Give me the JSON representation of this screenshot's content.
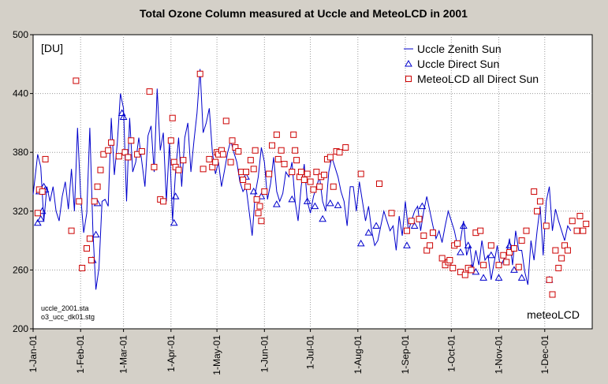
{
  "chart_data": {
    "type": "line",
    "title": "Total Ozone Column measured at Uccle and MeteoLCD in 2001",
    "unit_label": "[DU]",
    "xlabel": "",
    "ylabel": "",
    "ylim": [
      200,
      500
    ],
    "yticks": [
      200,
      260,
      320,
      380,
      440,
      500
    ],
    "xlim": [
      1,
      366
    ],
    "xticks": [
      {
        "label": "1-Jan-01",
        "day": 1
      },
      {
        "label": "1-Feb-01",
        "day": 32
      },
      {
        "label": "1-Mar-01",
        "day": 60
      },
      {
        "label": "1-Apr-01",
        "day": 91
      },
      {
        "label": "1-May-01",
        "day": 121
      },
      {
        "label": "1-Jun-01",
        "day": 152
      },
      {
        "label": "1-Jul-01",
        "day": 182
      },
      {
        "label": "1-Aug-01",
        "day": 213
      },
      {
        "label": "1-Sep-01",
        "day": 244
      },
      {
        "label": "1-Oct-01",
        "day": 274
      },
      {
        "label": "1-Nov-01",
        "day": 305
      },
      {
        "label": "1-Dec-01",
        "day": 335
      }
    ],
    "grid": true,
    "legend": "top-right",
    "series": [
      {
        "name": "Uccle Zenith Sun",
        "style": "line",
        "color": "#0000cc",
        "x": [
          1,
          4,
          6,
          8,
          10,
          12,
          14,
          16,
          18,
          20,
          22,
          24,
          26,
          28,
          30,
          32,
          34,
          36,
          38,
          40,
          42,
          44,
          46,
          48,
          50,
          52,
          54,
          56,
          58,
          60,
          62,
          64,
          66,
          68,
          70,
          72,
          74,
          76,
          78,
          80,
          82,
          84,
          86,
          88,
          90,
          92,
          94,
          96,
          98,
          100,
          102,
          104,
          106,
          108,
          110,
          112,
          114,
          116,
          118,
          120,
          122,
          124,
          126,
          128,
          130,
          132,
          134,
          136,
          138,
          140,
          142,
          144,
          146,
          148,
          150,
          152,
          154,
          156,
          158,
          160,
          162,
          164,
          166,
          168,
          170,
          172,
          174,
          176,
          178,
          180,
          182,
          184,
          186,
          188,
          190,
          192,
          194,
          196,
          198,
          200,
          202,
          204,
          206,
          208,
          210,
          212,
          214,
          216,
          218,
          220,
          222,
          224,
          226,
          228,
          230,
          232,
          234,
          236,
          238,
          240,
          242,
          244,
          246,
          248,
          250,
          252,
          254,
          256,
          258,
          260,
          262,
          264,
          266,
          268,
          270,
          272,
          274,
          276,
          278,
          280,
          282,
          284,
          286,
          288,
          290,
          292,
          294,
          296,
          298,
          300,
          302,
          304,
          306,
          308,
          310,
          312,
          314,
          316,
          318,
          320,
          322,
          324,
          326,
          328,
          330,
          332,
          334,
          336,
          338,
          340,
          342,
          344,
          346,
          348,
          350,
          352
        ],
        "y": [
          337,
          378,
          365,
          310,
          345,
          330,
          345,
          320,
          310,
          335,
          350,
          322,
          363,
          320,
          405,
          337,
          298,
          318,
          405,
          300,
          240,
          262,
          330,
          332,
          325,
          415,
          357,
          390,
          440,
          425,
          330,
          415,
          360,
          370,
          395,
          370,
          345,
          397,
          407,
          360,
          445,
          382,
          400,
          330,
          390,
          310,
          360,
          395,
          345,
          395,
          410,
          360,
          392,
          420,
          465,
          400,
          410,
          425,
          380,
          358,
          370,
          345,
          362,
          380,
          392,
          380,
          370,
          350,
          340,
          345,
          320,
          295,
          338,
          355,
          385,
          370,
          332,
          348,
          375,
          340,
          330,
          338,
          360,
          355,
          370,
          330,
          310,
          345,
          368,
          330,
          318,
          335,
          345,
          355,
          330,
          320,
          360,
          375,
          365,
          355,
          340,
          330,
          305,
          345,
          345,
          320,
          350,
          330,
          310,
          325,
          300,
          285,
          290,
          305,
          320,
          310,
          300,
          305,
          280,
          315,
          295,
          330,
          300,
          310,
          320,
          325,
          300,
          320,
          335,
          320,
          305,
          292,
          300,
          288,
          305,
          320,
          310,
          300,
          285,
          290,
          310,
          275,
          285,
          262,
          280,
          265,
          290,
          270,
          275,
          250,
          268,
          285,
          262,
          270,
          275,
          292,
          265,
          300,
          280,
          280,
          258,
          245,
          290,
          270,
          300,
          325,
          275,
          330,
          345,
          300,
          322,
          310,
          300,
          290,
          305,
          300
        ]
      },
      {
        "name": "Uccle Direct Sun",
        "style": "triangle",
        "color": "#0000cc",
        "x": [
          4,
          5,
          6,
          7,
          8,
          9,
          40,
          42,
          43,
          59,
          60,
          93,
          94,
          140,
          145,
          150,
          160,
          170,
          180,
          185,
          190,
          195,
          200,
          215,
          220,
          225,
          245,
          250,
          255,
          280,
          282,
          285,
          287,
          290,
          295,
          300,
          305,
          312,
          315,
          320,
          338
        ],
        "y": [
          308,
          340,
          312,
          320,
          345,
          342,
          270,
          296,
          328,
          420,
          416,
          308,
          335,
          355,
          340,
          335,
          327,
          332,
          330,
          325,
          312,
          328,
          326,
          287,
          298,
          305,
          285,
          305,
          325,
          278,
          305,
          285,
          262,
          258,
          252,
          275,
          252,
          285,
          260,
          252,
          250
        ]
      },
      {
        "name": "MeteoLCD all Direct Sun",
        "style": "square",
        "color": "#cc0000",
        "x": [
          4,
          5,
          7,
          9,
          26,
          29,
          31,
          33,
          36,
          38,
          39,
          41,
          43,
          45,
          47,
          50,
          52,
          57,
          61,
          63,
          65,
          69,
          72,
          77,
          80,
          84,
          86,
          91,
          92,
          93,
          94,
          96,
          99,
          110,
          112,
          116,
          118,
          120,
          121,
          122,
          124,
          125,
          127,
          130,
          131,
          133,
          135,
          137,
          138,
          140,
          141,
          143,
          145,
          146,
          147,
          148,
          149,
          150,
          152,
          155,
          157,
          160,
          161,
          163,
          165,
          170,
          171,
          172,
          173,
          175,
          176,
          178,
          180,
          182,
          184,
          186,
          188,
          189,
          191,
          193,
          195,
          197,
          199,
          201,
          205,
          215,
          227,
          235,
          245,
          248,
          253,
          256,
          258,
          260,
          262,
          268,
          270,
          272,
          273,
          275,
          276,
          278,
          280,
          283,
          285,
          287,
          290,
          293,
          295,
          300,
          305,
          308,
          310,
          312,
          315,
          318,
          320,
          323,
          328,
          330,
          332,
          336,
          338,
          340,
          342,
          344,
          346,
          348,
          350,
          353,
          356,
          358,
          360,
          362
        ],
        "y": [
          318,
          342,
          340,
          373,
          300,
          453,
          330,
          262,
          282,
          292,
          270,
          330,
          345,
          362,
          378,
          382,
          390,
          376,
          380,
          375,
          392,
          378,
          381,
          442,
          365,
          332,
          330,
          392,
          415,
          370,
          365,
          362,
          372,
          460,
          363,
          373,
          365,
          370,
          380,
          378,
          382,
          378,
          412,
          370,
          392,
          385,
          381,
          360,
          352,
          360,
          345,
          372,
          363,
          382,
          332,
          318,
          325,
          310,
          340,
          358,
          387,
          398,
          373,
          382,
          368,
          360,
          398,
          382,
          372,
          355,
          360,
          352,
          358,
          350,
          342,
          360,
          345,
          355,
          357,
          373,
          375,
          345,
          381,
          380,
          385,
          358,
          348,
          318,
          300,
          310,
          312,
          295,
          280,
          285,
          298,
          272,
          265,
          268,
          270,
          262,
          285,
          287,
          258,
          255,
          262,
          260,
          298,
          300,
          265,
          285,
          265,
          275,
          268,
          278,
          282,
          263,
          290,
          300,
          340,
          320,
          330,
          305,
          250,
          235,
          280,
          262,
          272,
          285,
          280,
          310,
          300,
          315,
          300,
          307
        ]
      }
    ],
    "annotations": [
      "uccle_2001.sta",
      "o3_ucc_dk01.stg"
    ],
    "watermark": "meteoLCD"
  }
}
